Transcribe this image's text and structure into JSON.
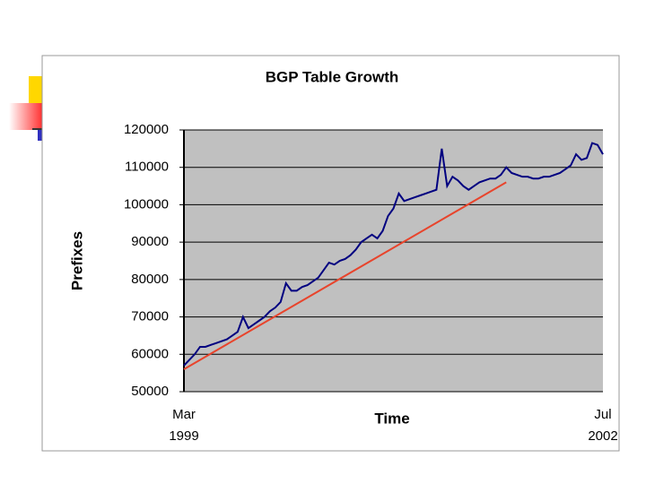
{
  "chart_data": {
    "type": "line",
    "title": "BGP Table Growth",
    "y_label": "Prefixes",
    "x_label": "Time",
    "categories": [
      "Mar 1999",
      null,
      null,
      null,
      null,
      null,
      null,
      null,
      null,
      null,
      null,
      null,
      null,
      null,
      null,
      null,
      null,
      null,
      null,
      null,
      null,
      null,
      null,
      null,
      null,
      null,
      null,
      null,
      null,
      null,
      null,
      null,
      null,
      null,
      null,
      null,
      null,
      null,
      null,
      null,
      null,
      null,
      null,
      null,
      null,
      null,
      null,
      null,
      null,
      null,
      null,
      null,
      null,
      null,
      null,
      null,
      null,
      null,
      null,
      null,
      null,
      null,
      null,
      null,
      null,
      null,
      null,
      null,
      null,
      null,
      null,
      null,
      null,
      null,
      null,
      null,
      null,
      null,
      "Jul 2002"
    ],
    "series": [
      {
        "color": "#000080",
        "values": [
          57000,
          58500,
          60000,
          62000,
          62000,
          62500,
          63000,
          63500,
          64000,
          65000,
          66000,
          70000,
          67000,
          68000,
          69000,
          70000,
          71500,
          72500,
          74000,
          79000,
          77000,
          77000,
          78000,
          78500,
          79500,
          80500,
          82500,
          84500,
          84000,
          85000,
          85500,
          86500,
          88000,
          90000,
          91000,
          92000,
          91000,
          93000,
          97000,
          99000,
          103000,
          101000,
          101500,
          102000,
          102500,
          103000,
          103500,
          104000,
          115000,
          105000,
          107500,
          106500,
          105000,
          104000,
          105000,
          106000,
          106500,
          107000,
          107000,
          108000,
          110000,
          108500,
          108000,
          107500,
          107500,
          107000,
          107000,
          107500,
          107500,
          108000,
          108500,
          109500,
          110500,
          113500,
          112000,
          112500,
          116500,
          116000,
          113500
        ]
      }
    ],
    "trend_line": {
      "color": "#e8442c",
      "x": [
        0,
        60
      ],
      "values": [
        56000,
        106000
      ]
    },
    "ylim": [
      50000,
      120000
    ],
    "yticks": [
      50000,
      60000,
      70000,
      80000,
      90000,
      100000,
      110000,
      120000
    ],
    "grid": true,
    "plot_background": "#c0c0c0"
  }
}
